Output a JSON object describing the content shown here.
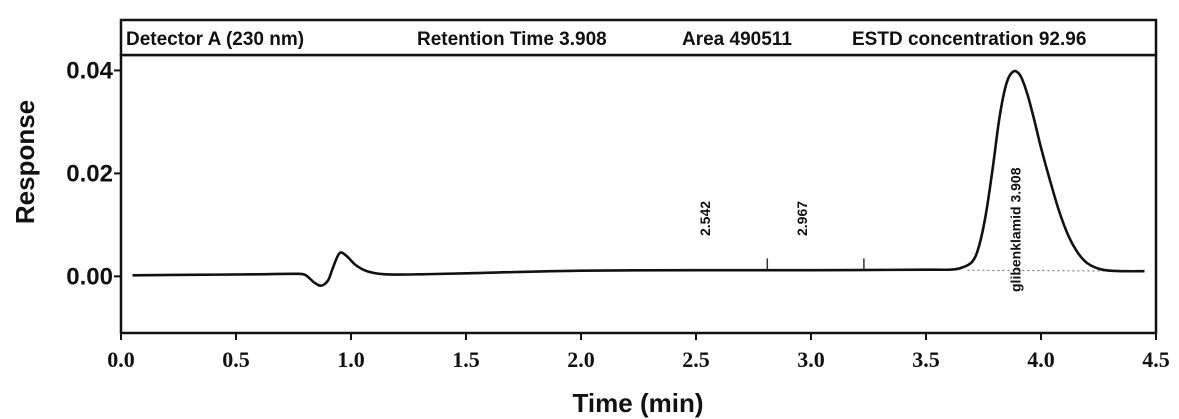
{
  "chart_data": {
    "type": "line",
    "header": {
      "detector": "Detector A (230 nm)",
      "retention": "Retention Time 3.908",
      "area": "Area 490511",
      "estd": "ESTD concentration 92.96"
    },
    "xlabel": "Time (min)",
    "ylabel": "Response",
    "xlim": [
      0.0,
      4.5
    ],
    "ylim": [
      -0.011,
      0.043
    ],
    "xticks": [
      "0.0",
      "0.5",
      "1.0",
      "1.5",
      "2.0",
      "2.5",
      "3.0",
      "3.5",
      "4.0",
      "4.5"
    ],
    "xtick_values": [
      0.0,
      0.5,
      1.0,
      1.5,
      2.0,
      2.5,
      3.0,
      3.5,
      4.0,
      4.5
    ],
    "yticks": [
      "0.04",
      "0.02",
      "0.00"
    ],
    "ytick_values": [
      0.04,
      0.02,
      0.0
    ],
    "grid": false,
    "series": [
      {
        "x": [
          0.05,
          0.3,
          0.6,
          0.75,
          0.8,
          0.84,
          0.87,
          0.9,
          0.92,
          0.95,
          0.98,
          1.02,
          1.07,
          1.15,
          1.3,
          1.5,
          2.0,
          2.5,
          3.0,
          3.5,
          3.6,
          3.65,
          3.7,
          3.73,
          3.76,
          3.79,
          3.82,
          3.85,
          3.88,
          3.91,
          3.94,
          3.97,
          4.0,
          4.04,
          4.08,
          4.12,
          4.16,
          4.2,
          4.25,
          4.3,
          4.37,
          4.45
        ],
        "y": [
          0.0002,
          0.0003,
          0.0004,
          0.0005,
          0.0003,
          -0.0012,
          -0.0018,
          -0.0008,
          0.0015,
          0.0045,
          0.004,
          0.0022,
          0.001,
          0.0004,
          0.0004,
          0.0006,
          0.0011,
          0.0012,
          0.0012,
          0.0013,
          0.0013,
          0.0016,
          0.0028,
          0.0058,
          0.012,
          0.021,
          0.031,
          0.0375,
          0.0398,
          0.039,
          0.0355,
          0.0305,
          0.025,
          0.0185,
          0.0125,
          0.0078,
          0.0046,
          0.0026,
          0.0015,
          0.0011,
          0.001,
          0.001
        ]
      }
    ],
    "peaks": [
      {
        "label": "2.542",
        "x": 2.54
      },
      {
        "label": "2.967",
        "x": 2.96
      },
      {
        "label": "glibenklamid  3.908",
        "x": 3.89
      }
    ],
    "spikes": [
      2.81,
      3.23
    ]
  }
}
